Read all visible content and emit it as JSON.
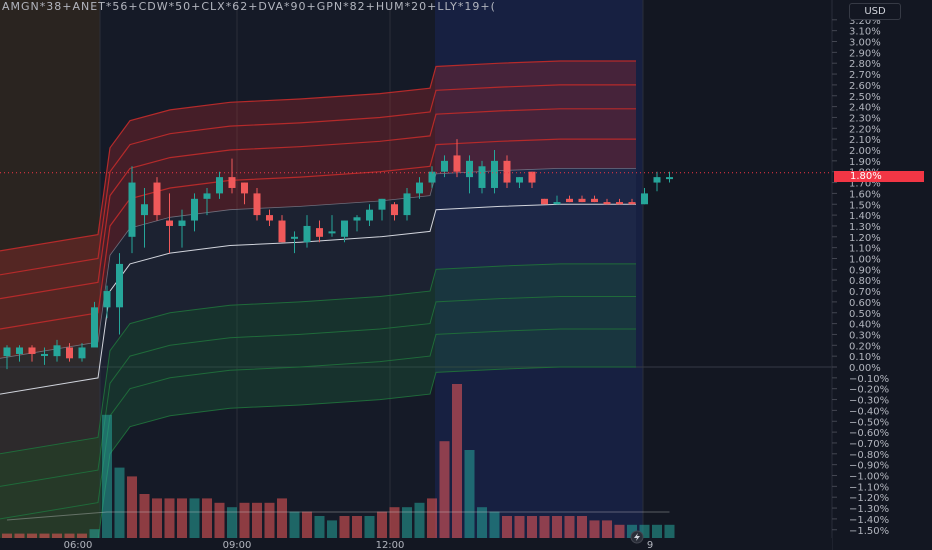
{
  "header": {
    "symbols": "AMGN*38+ANET*56+CDW*50+CLX*62+DVA*90+GPN*82+HUM*20+LLY*19+("
  },
  "price_axis": {
    "currency": "USD",
    "tick_labels": [
      "3.20%",
      "3.10%",
      "3.00%",
      "2.90%",
      "2.80%",
      "2.70%",
      "2.60%",
      "2.50%",
      "2.40%",
      "2.30%",
      "2.20%",
      "2.10%",
      "2.00%",
      "1.90%",
      "1.80%",
      "1.70%",
      "1.60%",
      "1.50%",
      "1.40%",
      "1.30%",
      "1.20%",
      "1.10%",
      "1.00%",
      "0.90%",
      "0.80%",
      "0.70%",
      "0.60%",
      "0.50%",
      "0.40%",
      "0.30%",
      "0.20%",
      "0.10%",
      "0.00%",
      "−0.10%",
      "−0.20%",
      "−0.30%",
      "−0.40%",
      "−0.50%",
      "−0.60%",
      "−0.70%",
      "−0.80%",
      "−0.90%",
      "−1.00%",
      "−1.10%",
      "−1.20%",
      "−1.30%",
      "−1.40%",
      "−1.50%"
    ],
    "last_value_label": "1.80%"
  },
  "time_axis": {
    "tick_labels": [
      "06:00",
      "09:00",
      "12:00",
      "9"
    ]
  },
  "colors": {
    "up": "#26a69a",
    "down": "#f0595a",
    "background": "#131722",
    "upper_band": "#c12a2a",
    "lower_band": "#1f6b3a",
    "last_price": "#f23645"
  },
  "icons": {
    "replay": "lightning-icon"
  },
  "chart_data": {
    "type": "candlestick",
    "y_unit": "%",
    "ylim": [
      -1.55,
      3.25
    ],
    "current_value": 1.79,
    "candles": [
      {
        "o": 0.1,
        "h": 0.2,
        "l": -0.02,
        "c": 0.18
      },
      {
        "o": 0.12,
        "h": 0.2,
        "l": 0.05,
        "c": 0.18
      },
      {
        "o": 0.18,
        "h": 0.2,
        "l": 0.05,
        "c": 0.12
      },
      {
        "o": 0.12,
        "h": 0.18,
        "l": 0.02,
        "c": 0.12
      },
      {
        "o": 0.1,
        "h": 0.25,
        "l": 0.05,
        "c": 0.2
      },
      {
        "o": 0.18,
        "h": 0.22,
        "l": 0.05,
        "c": 0.08
      },
      {
        "o": 0.08,
        "h": 0.22,
        "l": 0.05,
        "c": 0.18
      },
      {
        "o": 0.18,
        "h": 0.6,
        "l": 0.2,
        "c": 0.55
      },
      {
        "o": 0.55,
        "h": 0.75,
        "l": 0.45,
        "c": 0.7
      },
      {
        "o": 0.55,
        "h": 1.05,
        "l": 0.3,
        "c": 0.95
      },
      {
        "o": 1.2,
        "h": 1.85,
        "l": 1.05,
        "c": 1.7
      },
      {
        "o": 1.4,
        "h": 1.65,
        "l": 1.1,
        "c": 1.5
      },
      {
        "o": 1.7,
        "h": 1.75,
        "l": 1.35,
        "c": 1.4
      },
      {
        "o": 1.35,
        "h": 1.6,
        "l": 1.05,
        "c": 1.3
      },
      {
        "o": 1.3,
        "h": 1.45,
        "l": 1.1,
        "c": 1.35
      },
      {
        "o": 1.35,
        "h": 1.6,
        "l": 1.25,
        "c": 1.55
      },
      {
        "o": 1.55,
        "h": 1.65,
        "l": 1.4,
        "c": 1.6
      },
      {
        "o": 1.6,
        "h": 1.8,
        "l": 1.55,
        "c": 1.75
      },
      {
        "o": 1.75,
        "h": 1.92,
        "l": 1.6,
        "c": 1.65
      },
      {
        "o": 1.7,
        "h": 1.7,
        "l": 1.5,
        "c": 1.6
      },
      {
        "o": 1.6,
        "h": 1.65,
        "l": 1.35,
        "c": 1.4
      },
      {
        "o": 1.4,
        "h": 1.45,
        "l": 1.3,
        "c": 1.35
      },
      {
        "o": 1.35,
        "h": 1.4,
        "l": 1.15,
        "c": 1.15
      },
      {
        "o": 1.2,
        "h": 1.25,
        "l": 1.05,
        "c": 1.2
      },
      {
        "o": 1.15,
        "h": 1.4,
        "l": 1.1,
        "c": 1.3
      },
      {
        "o": 1.28,
        "h": 1.35,
        "l": 1.15,
        "c": 1.2
      },
      {
        "o": 1.25,
        "h": 1.4,
        "l": 1.2,
        "c": 1.25
      },
      {
        "o": 1.2,
        "h": 1.35,
        "l": 1.15,
        "c": 1.35
      },
      {
        "o": 1.35,
        "h": 1.4,
        "l": 1.25,
        "c": 1.38
      },
      {
        "o": 1.35,
        "h": 1.5,
        "l": 1.3,
        "c": 1.45
      },
      {
        "o": 1.45,
        "h": 1.55,
        "l": 1.35,
        "c": 1.55
      },
      {
        "o": 1.5,
        "h": 1.52,
        "l": 1.35,
        "c": 1.4
      },
      {
        "o": 1.4,
        "h": 1.65,
        "l": 1.35,
        "c": 1.6
      },
      {
        "o": 1.6,
        "h": 1.75,
        "l": 1.55,
        "c": 1.7
      },
      {
        "o": 1.7,
        "h": 1.85,
        "l": 1.65,
        "c": 1.8
      },
      {
        "o": 1.8,
        "h": 1.95,
        "l": 1.75,
        "c": 1.9
      },
      {
        "o": 1.95,
        "h": 2.1,
        "l": 1.75,
        "c": 1.8
      },
      {
        "o": 1.75,
        "h": 1.95,
        "l": 1.6,
        "c": 1.9
      },
      {
        "o": 1.65,
        "h": 1.9,
        "l": 1.6,
        "c": 1.85
      },
      {
        "o": 1.65,
        "h": 2.0,
        "l": 1.6,
        "c": 1.9
      },
      {
        "o": 1.9,
        "h": 1.95,
        "l": 1.65,
        "c": 1.7
      },
      {
        "o": 1.7,
        "h": 1.75,
        "l": 1.65,
        "c": 1.75
      },
      {
        "o": 1.8,
        "h": 1.8,
        "l": 1.65,
        "c": 1.7
      },
      {
        "o": 1.55,
        "h": 1.55,
        "l": 1.5,
        "c": 1.5
      },
      {
        "o": 1.5,
        "h": 1.58,
        "l": 1.5,
        "c": 1.52
      },
      {
        "o": 1.55,
        "h": 1.58,
        "l": 1.52,
        "c": 1.52
      },
      {
        "o": 1.55,
        "h": 1.58,
        "l": 1.52,
        "c": 1.52
      },
      {
        "o": 1.55,
        "h": 1.58,
        "l": 1.52,
        "c": 1.52
      },
      {
        "o": 1.52,
        "h": 1.55,
        "l": 1.5,
        "c": 1.5
      },
      {
        "o": 1.52,
        "h": 1.55,
        "l": 1.5,
        "c": 1.5
      },
      {
        "o": 1.52,
        "h": 1.55,
        "l": 1.5,
        "c": 1.5
      },
      {
        "o": 1.5,
        "h": 1.65,
        "l": 1.5,
        "c": 1.6
      },
      {
        "o": 1.7,
        "h": 1.8,
        "l": 1.62,
        "c": 1.75
      },
      {
        "o": 1.75,
        "h": 1.8,
        "l": 1.7,
        "c": 1.75
      }
    ],
    "volume": [
      {
        "v": 1,
        "up": false
      },
      {
        "v": 1,
        "up": false
      },
      {
        "v": 1,
        "up": false
      },
      {
        "v": 1,
        "up": false
      },
      {
        "v": 1,
        "up": false
      },
      {
        "v": 1,
        "up": false
      },
      {
        "v": 1,
        "up": false
      },
      {
        "v": 2,
        "up": true
      },
      {
        "v": 28,
        "up": true
      },
      {
        "v": 16,
        "up": true
      },
      {
        "v": 14,
        "up": false
      },
      {
        "v": 10,
        "up": false
      },
      {
        "v": 9,
        "up": false
      },
      {
        "v": 9,
        "up": false
      },
      {
        "v": 9,
        "up": false
      },
      {
        "v": 9,
        "up": true
      },
      {
        "v": 9,
        "up": false
      },
      {
        "v": 8,
        "up": false
      },
      {
        "v": 7,
        "up": true
      },
      {
        "v": 8,
        "up": false
      },
      {
        "v": 8,
        "up": false
      },
      {
        "v": 8,
        "up": false
      },
      {
        "v": 9,
        "up": false
      },
      {
        "v": 6,
        "up": true
      },
      {
        "v": 6,
        "up": false
      },
      {
        "v": 5,
        "up": true
      },
      {
        "v": 4,
        "up": true
      },
      {
        "v": 5,
        "up": false
      },
      {
        "v": 5,
        "up": false
      },
      {
        "v": 5,
        "up": true
      },
      {
        "v": 6,
        "up": false
      },
      {
        "v": 7,
        "up": false
      },
      {
        "v": 7,
        "up": true
      },
      {
        "v": 8,
        "up": true
      },
      {
        "v": 9,
        "up": false
      },
      {
        "v": 22,
        "up": false
      },
      {
        "v": 35,
        "up": false
      },
      {
        "v": 20,
        "up": true
      },
      {
        "v": 7,
        "up": true
      },
      {
        "v": 6,
        "up": true
      },
      {
        "v": 5,
        "up": false
      },
      {
        "v": 5,
        "up": false
      },
      {
        "v": 5,
        "up": false
      },
      {
        "v": 5,
        "up": false
      },
      {
        "v": 5,
        "up": false
      },
      {
        "v": 5,
        "up": false
      },
      {
        "v": 5,
        "up": false
      },
      {
        "v": 4,
        "up": false
      },
      {
        "v": 4,
        "up": false
      },
      {
        "v": 3,
        "up": false
      },
      {
        "v": 3,
        "up": true
      },
      {
        "v": 3,
        "up": true
      },
      {
        "v": 3,
        "up": true
      },
      {
        "v": 3,
        "up": true
      }
    ]
  }
}
